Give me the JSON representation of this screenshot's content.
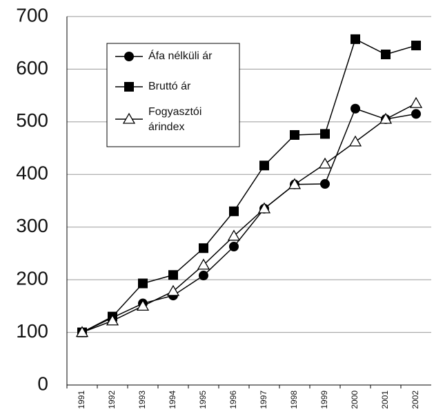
{
  "chart_data": {
    "type": "line",
    "categories": [
      "1991",
      "1992",
      "1993",
      "1994",
      "1995",
      "1996",
      "1997",
      "1998",
      "1999",
      "2000",
      "2001",
      "2002"
    ],
    "series": [
      {
        "name": "Áfa nélküli ár",
        "color": "#000000",
        "marker": "circle",
        "values": [
          100,
          128,
          155,
          170,
          208,
          263,
          335,
          381,
          382,
          525,
          505,
          515
        ]
      },
      {
        "name": "Bruttó ár",
        "color": "#000000",
        "marker": "square",
        "values": [
          100,
          130,
          193,
          209,
          260,
          330,
          417,
          475,
          477,
          657,
          628,
          645
        ]
      },
      {
        "name": "Fogyasztói árindex",
        "color": "#000000",
        "marker": "triangle",
        "values": [
          100,
          122,
          150,
          178,
          228,
          283,
          335,
          381,
          420,
          462,
          505,
          535
        ]
      }
    ],
    "ylim": [
      0,
      700
    ],
    "yticks": [
      0,
      100,
      200,
      300,
      400,
      500,
      600,
      700
    ],
    "grid": true,
    "legend": "upper left"
  }
}
